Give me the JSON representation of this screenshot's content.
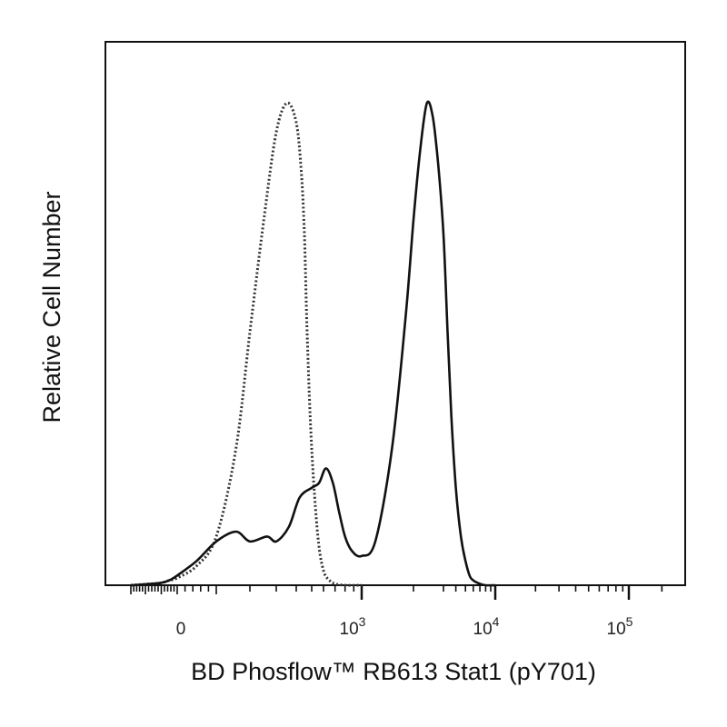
{
  "chart_data": {
    "type": "line",
    "title": "",
    "xlabel": "BD Phosflow™ RB613 Stat1 (pY701)",
    "ylabel": "Relative Cell Number",
    "x_scale": "biexponential",
    "x_ticks": [
      {
        "value": 0,
        "base": "0",
        "exp": ""
      },
      {
        "value": 1000,
        "base": "10",
        "exp": "3"
      },
      {
        "value": 10000,
        "base": "10",
        "exp": "4"
      },
      {
        "value": 100000,
        "base": "10",
        "exp": "5"
      }
    ],
    "xlim": [
      -400,
      250000
    ],
    "ylim": [
      0,
      100
    ],
    "grid": false,
    "legend": "none",
    "series": [
      {
        "style": "dotted",
        "color": "#333333",
        "x": [
          -300,
          -200,
          -100,
          -50,
          0,
          50,
          100,
          150,
          200,
          250,
          300,
          350,
          400,
          430,
          450,
          470,
          500,
          550,
          600,
          650,
          700,
          800,
          1000
        ],
        "y": [
          0,
          0.2,
          0.5,
          1,
          1.5,
          4,
          10,
          28,
          52,
          76,
          93,
          99,
          95,
          85,
          72,
          50,
          28,
          10,
          3,
          1,
          0.3,
          0,
          0
        ]
      },
      {
        "style": "solid",
        "color": "#111111",
        "x": [
          -300,
          -200,
          -100,
          -50,
          0,
          50,
          100,
          150,
          200,
          260,
          300,
          360,
          420,
          500,
          560,
          620,
          680,
          740,
          800,
          880,
          1000,
          1200,
          1500,
          1800,
          2000,
          2200,
          2400,
          2600,
          2800,
          3000,
          3300,
          3600,
          4000,
          4500,
          5000,
          5500,
          6000,
          7000,
          8000,
          10000
        ],
        "y": [
          0,
          0.2,
          0.5,
          1,
          2,
          5,
          9,
          11,
          9,
          10,
          9,
          12,
          18,
          20,
          21,
          24,
          21,
          15,
          10,
          7,
          6,
          9,
          28,
          55,
          75,
          90,
          99,
          96,
          86,
          72,
          52,
          35,
          20,
          10,
          5,
          2,
          1,
          0.3,
          0,
          0
        ]
      }
    ]
  }
}
